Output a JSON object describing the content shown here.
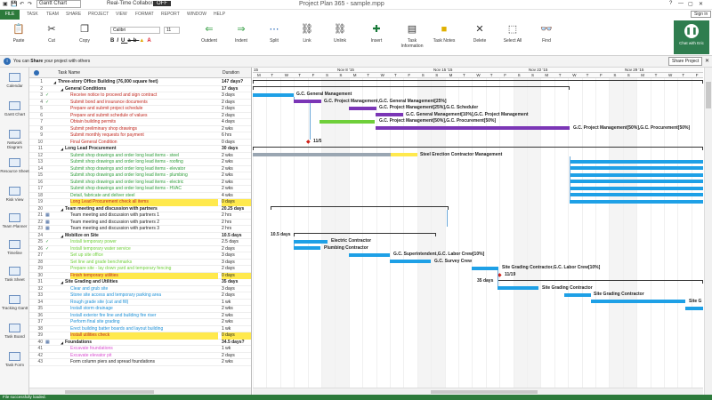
{
  "window": {
    "title": "Project Plan 365 - sample.mpp",
    "view_select": "Gantt Chart",
    "realtime_label": "Real-Time Collaboration",
    "realtime_state": "OFF",
    "signin": "Sign in"
  },
  "tabs": [
    "FILE",
    "TASK",
    "TEAM",
    "SHARE",
    "PROJECT",
    "VIEW",
    "FORMAT",
    "REPORT",
    "WINDOW",
    "HELP"
  ],
  "ribbon": {
    "paste": "Paste",
    "cut": "Cut",
    "copy": "Copy",
    "font_name": "Calibri",
    "font_size": "11",
    "outdent": "Outdent",
    "indent": "Indent",
    "split": "Split",
    "link": "Link",
    "unlink": "Unlink",
    "insert": "Insert",
    "task_info": "Task Information",
    "task_notes": "Task Notes",
    "delete": "Delete",
    "select_all": "Select All",
    "find": "Find",
    "chat": "Chat with Eric"
  },
  "info": {
    "text_pre": "You can",
    "text_bold": "Share",
    "text_post": "your project with others",
    "button": "Share Project"
  },
  "sidebar": [
    "Calendar",
    "Gantt Chart",
    "Network Diagram",
    "Resource Sheet",
    "Risk View",
    "Team Planner",
    "Timeline",
    "Task Sheet",
    "Tracking Gantt",
    "Task Board",
    "Task Form"
  ],
  "columns": {
    "task_name": "Task Name",
    "duration": "Duration"
  },
  "timescale": {
    "top": [
      "15",
      "Nov 8 '15",
      "Nov 15 '15",
      "Nov 22 '15",
      "Nov 29 '15"
    ],
    "days": [
      "M",
      "T",
      "W",
      "T",
      "F",
      "S",
      "S"
    ]
  },
  "rows": [
    {
      "id": "1",
      "name": "Three-story Office Building (76,000 square feet)",
      "dur": "147 days?",
      "lvl": 0,
      "sum": true,
      "col": "#222"
    },
    {
      "id": "2",
      "name": "General Conditions",
      "dur": "17 days",
      "lvl": 1,
      "sum": true,
      "col": "#222"
    },
    {
      "id": "3",
      "name": "Receive notice to proceed and sign contract",
      "dur": "3 days",
      "lvl": 2,
      "col": "#c0281f",
      "ind": "✓"
    },
    {
      "id": "4",
      "name": "Submit bond and insurance documents",
      "dur": "2 days",
      "lvl": 2,
      "col": "#c0281f",
      "ind": "✓"
    },
    {
      "id": "5",
      "name": "Prepare and submit project schedule",
      "dur": "2 days",
      "lvl": 2,
      "col": "#c0281f"
    },
    {
      "id": "6",
      "name": "Prepare and submit schedule of values",
      "dur": "2 days",
      "lvl": 2,
      "col": "#c0281f"
    },
    {
      "id": "7",
      "name": "Obtain building permits",
      "dur": "4 days",
      "lvl": 2,
      "col": "#c0281f"
    },
    {
      "id": "8",
      "name": "Submit preliminary shop drawings",
      "dur": "2 wks",
      "lvl": 2,
      "col": "#c0281f"
    },
    {
      "id": "9",
      "name": "Submit monthly requests for payment",
      "dur": "6 hrs",
      "lvl": 2,
      "col": "#c0281f"
    },
    {
      "id": "10",
      "name": "Final General Condition",
      "dur": "0 days",
      "lvl": 2,
      "col": "#c0281f"
    },
    {
      "id": "11",
      "name": "Long Lead Procurement",
      "dur": "30 days",
      "lvl": 1,
      "sum": true,
      "col": "#222"
    },
    {
      "id": "12",
      "name": "Submit shop drawings and order long lead items - steel",
      "dur": "2 wks",
      "lvl": 2,
      "col": "#2e9d3a"
    },
    {
      "id": "13",
      "name": "Submit shop drawings and order long lead items - roofing",
      "dur": "2 wks",
      "lvl": 2,
      "col": "#2e9d3a"
    },
    {
      "id": "14",
      "name": "Submit shop drawings and order long lead items - elevator",
      "dur": "2 wks",
      "lvl": 2,
      "col": "#2e9d3a"
    },
    {
      "id": "15",
      "name": "Submit shop drawings and order long lead items - plumbing",
      "dur": "2 wks",
      "lvl": 2,
      "col": "#2e9d3a"
    },
    {
      "id": "16",
      "name": "Submit shop drawings and order long lead items - electric",
      "dur": "2 wks",
      "lvl": 2,
      "col": "#2e9d3a"
    },
    {
      "id": "17",
      "name": "Submit shop drawings and order long lead items - HVAC",
      "dur": "2 wks",
      "lvl": 2,
      "col": "#2e9d3a"
    },
    {
      "id": "18",
      "name": "Detail, fabricate and deliver steel",
      "dur": "4 wks",
      "lvl": 2,
      "col": "#2e9d3a"
    },
    {
      "id": "19",
      "name": "Long Lead Procurement check all items",
      "dur": "0 days",
      "lvl": 2,
      "col": "#c0281f",
      "hl": true
    },
    {
      "id": "20",
      "name": "Team meeting and discussion with partners",
      "dur": "20.25 days",
      "lvl": 1,
      "sum": true,
      "col": "#222"
    },
    {
      "id": "21",
      "name": "Team meeting and discussion with partners 1",
      "dur": "2 hrs",
      "lvl": 2,
      "col": "#222",
      "ind": "▦"
    },
    {
      "id": "22",
      "name": "Team meeting and discussion with partners 2",
      "dur": "2 hrs",
      "lvl": 2,
      "col": "#222",
      "ind": "▦"
    },
    {
      "id": "23",
      "name": "Team meeting and discussion with partners 3",
      "dur": "2 hrs",
      "lvl": 2,
      "col": "#222",
      "ind": "▦"
    },
    {
      "id": "24",
      "name": "Mobilize on Site",
      "dur": "10.5 days",
      "lvl": 1,
      "sum": true,
      "col": "#222"
    },
    {
      "id": "25",
      "name": "Install temporary power",
      "dur": "2.5 days",
      "lvl": 2,
      "col": "#6fcf3a",
      "ind": "✓"
    },
    {
      "id": "26",
      "name": "Install temporary water service",
      "dur": "2 days",
      "lvl": 2,
      "col": "#6fcf3a",
      "ind": "✓"
    },
    {
      "id": "27",
      "name": "Set up site office",
      "dur": "3 days",
      "lvl": 2,
      "col": "#6fcf3a"
    },
    {
      "id": "28",
      "name": "Set line and grade benchmarks",
      "dur": "3 days",
      "lvl": 2,
      "col": "#6fcf3a"
    },
    {
      "id": "29",
      "name": "Prepare site - lay down yard and temporary fencing",
      "dur": "2 days",
      "lvl": 2,
      "col": "#6fcf3a"
    },
    {
      "id": "30",
      "name": "Finish temporary utilities",
      "dur": "0 days",
      "lvl": 2,
      "col": "#c0281f",
      "hl": true
    },
    {
      "id": "31",
      "name": "Site Grading and Utilities",
      "dur": "35 days",
      "lvl": 1,
      "sum": true,
      "col": "#222"
    },
    {
      "id": "32",
      "name": "Clear and grub site",
      "dur": "3 days",
      "lvl": 2,
      "col": "#1c8fd6"
    },
    {
      "id": "33",
      "name": "Stone site access and temporary parking area",
      "dur": "2 days",
      "lvl": 2,
      "col": "#1c8fd6"
    },
    {
      "id": "34",
      "name": "Rough grade site (cut and fill)",
      "dur": "1 wk",
      "lvl": 2,
      "col": "#1c8fd6"
    },
    {
      "id": "35",
      "name": "Install storm drainage",
      "dur": "2 wks",
      "lvl": 2,
      "col": "#1c8fd6"
    },
    {
      "id": "36",
      "name": "Install exterior fire line and building fire riser",
      "dur": "2 wks",
      "lvl": 2,
      "col": "#1c8fd6"
    },
    {
      "id": "37",
      "name": "Perform final site grading",
      "dur": "2 wks",
      "lvl": 2,
      "col": "#1c8fd6"
    },
    {
      "id": "38",
      "name": "Erect building batter boards and layout building",
      "dur": "1 wk",
      "lvl": 2,
      "col": "#1c8fd6"
    },
    {
      "id": "39",
      "name": "Install utilities check",
      "dur": "0 days",
      "lvl": 2,
      "col": "#c0281f",
      "hl": true
    },
    {
      "id": "40",
      "name": "Foundations",
      "dur": "34.5 days?",
      "lvl": 1,
      "sum": true,
      "col": "#222",
      "ind": "▦"
    },
    {
      "id": "41",
      "name": "Excavate foundations",
      "dur": "1 wk",
      "lvl": 2,
      "col": "#d94fd1"
    },
    {
      "id": "42",
      "name": "Excavate elevator pit",
      "dur": "2 days",
      "lvl": 2,
      "col": "#d94fd1"
    },
    {
      "id": "43",
      "name": "Form column piers and spread foundations",
      "dur": "2 wks",
      "lvl": 2,
      "col": "#222"
    }
  ],
  "gantt_labels": {
    "l2": "G.C. General Management",
    "l3": "G.C. Project Management,G.C. General Management[25%]",
    "l4": "G.C. Project Management[25%],G.C. Scheduler",
    "l5": "G.C. General Management[10%],G.C. Project Management",
    "l6": "G.C. Project Management[50%],G.C. Procurement[50%]",
    "l7": "G.C. Project Management[50%],G.C. Procurement[50%]",
    "m10": "11/5",
    "l11": "Steel Erection Contractor Management",
    "d24": "10.5 days",
    "l25": "Electric Contractor",
    "l26": "Plumbing Contractor",
    "l27": "G.C. Superintendent,G.C. Labor Crew[10%]",
    "l28": "G.C. Survey Crew",
    "l29": "Site Grading Contractor,G.C. Labor Crew[10%]",
    "m30": "11/19",
    "d31": "35 days",
    "l32": "Site Grading Contractor",
    "l33": "Site Grading Contractor",
    "l34": "Site G"
  },
  "colors": {
    "green": "#2c7a3b",
    "bar_blue": "#1ea0e6",
    "bar_purple": "#7b36b6",
    "bar_green": "#6fcf3a",
    "milestone": "#d1221a",
    "highlight": "#ffe94d"
  },
  "status": {
    "text": "File successfully loaded."
  }
}
